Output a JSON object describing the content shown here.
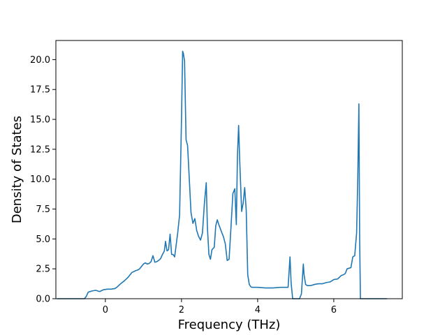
{
  "chart_data": {
    "type": "line",
    "title": "",
    "xlabel": "Frequency (THz)",
    "ylabel": "Density of States",
    "xlim": [
      -1.3,
      7.8
    ],
    "ylim": [
      0,
      21.6
    ],
    "xticks": [
      0,
      2,
      4,
      6
    ],
    "yticks": [
      0.0,
      2.5,
      5.0,
      7.5,
      10.0,
      12.5,
      15.0,
      17.5,
      20.0
    ],
    "xtick_labels": [
      "0",
      "2",
      "4",
      "6"
    ],
    "ytick_labels": [
      "0.0",
      "2.5",
      "5.0",
      "7.5",
      "10.0",
      "12.5",
      "15.0",
      "17.5",
      "20.0"
    ],
    "grid": false,
    "legend": "none",
    "line_color": "#1f77b4",
    "series": [
      {
        "x": [
          -1.27,
          -0.55,
          -0.5,
          -0.45,
          -0.35,
          -0.25,
          -0.15,
          -0.05,
          0.05,
          0.15,
          0.25,
          0.3,
          0.4,
          0.5,
          0.6,
          0.7,
          0.8,
          0.85,
          0.9,
          0.95,
          1.0,
          1.05,
          1.1,
          1.15,
          1.2,
          1.25,
          1.3,
          1.35,
          1.4,
          1.45,
          1.5,
          1.55,
          1.58,
          1.62,
          1.66,
          1.7,
          1.74,
          1.78,
          1.82,
          1.86,
          1.9,
          1.95,
          2.0,
          2.03,
          2.05,
          2.08,
          2.12,
          2.16,
          2.2,
          2.25,
          2.3,
          2.35,
          2.4,
          2.45,
          2.5,
          2.55,
          2.6,
          2.65,
          2.68,
          2.72,
          2.76,
          2.8,
          2.86,
          2.9,
          2.94,
          2.98,
          3.05,
          3.1,
          3.15,
          3.2,
          3.25,
          3.3,
          3.35,
          3.4,
          3.44,
          3.47,
          3.5,
          3.53,
          3.58,
          3.62,
          3.66,
          3.7,
          3.74,
          3.78,
          3.82,
          3.86,
          3.9,
          4.0,
          4.2,
          4.4,
          4.6,
          4.8,
          4.85,
          4.88,
          4.92,
          5.0,
          5.1,
          5.15,
          5.2,
          5.22,
          5.26,
          5.3,
          5.4,
          5.5,
          5.6,
          5.7,
          5.8,
          5.9,
          6.0,
          6.1,
          6.2,
          6.25,
          6.3,
          6.35,
          6.4,
          6.45,
          6.5,
          6.55,
          6.6,
          6.63,
          6.66,
          6.68,
          6.7,
          6.75,
          6.9,
          7.2,
          7.4
        ],
        "y": [
          0.0,
          0.0,
          0.2,
          0.55,
          0.65,
          0.7,
          0.6,
          0.75,
          0.8,
          0.8,
          0.85,
          0.95,
          1.25,
          1.5,
          1.8,
          2.2,
          2.35,
          2.4,
          2.5,
          2.7,
          2.9,
          3.0,
          2.9,
          2.95,
          3.1,
          3.6,
          3.05,
          3.1,
          3.2,
          3.35,
          3.7,
          4.0,
          4.8,
          4.0,
          4.1,
          5.4,
          3.7,
          3.7,
          3.5,
          4.5,
          5.5,
          7.0,
          15.0,
          20.7,
          20.5,
          19.9,
          13.3,
          12.8,
          10.3,
          7.2,
          6.3,
          6.7,
          5.7,
          5.2,
          4.9,
          5.5,
          7.9,
          9.7,
          6.0,
          3.7,
          3.3,
          4.1,
          4.3,
          6.1,
          6.6,
          6.2,
          5.6,
          5.2,
          4.6,
          3.2,
          3.3,
          6.0,
          8.8,
          9.2,
          6.2,
          12.0,
          14.5,
          11.5,
          7.3,
          8.0,
          9.3,
          7.4,
          2.0,
          1.2,
          1.0,
          0.95,
          0.95,
          0.95,
          0.9,
          0.9,
          0.95,
          0.95,
          3.5,
          1.3,
          0.0,
          0.0,
          0.0,
          0.4,
          2.9,
          2.0,
          1.2,
          1.1,
          1.1,
          1.2,
          1.25,
          1.25,
          1.35,
          1.4,
          1.6,
          1.65,
          1.95,
          2.0,
          2.1,
          2.5,
          2.55,
          2.6,
          3.5,
          3.6,
          5.5,
          10.0,
          16.3,
          5.0,
          0.0,
          0.0,
          0.0,
          0.0,
          0.0
        ]
      }
    ]
  }
}
